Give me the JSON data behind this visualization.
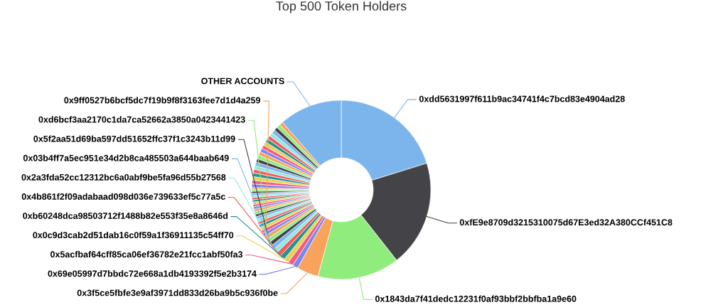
{
  "chart_data": {
    "type": "donut",
    "title": "Top 500 Token Holders",
    "categories": [
      "0xdd5631997f611b9ac34741f4c7bcd83e4904ad28",
      "0xfE9e8709d3215310075d67E3ed32A380CCf451C8",
      "0x1843da7f41dedc12231f0af93bbf2bbfba1a9e60",
      "0x3f5ce5fbfe3e9af3971dd833d26ba9b5c936f0be",
      "0x69e05997d7bbdc72e668a1db4193392f5e2b3174",
      "0x5acfbaf64cff85ca06ef36782e21fcc1abf50fa3",
      "0x0c9d3cab2d51dab16c0f59a1f36911135c54ff70",
      "0xb60248dca98503712f1488b82e553f35e8a8646d",
      "0x4b861f2f09adabaad098d036e739633ef5c77a5c",
      "0x2a3fda52cc12312bc6a0abf9be5fa96d55b27568",
      "0x03b4ff7a5ec951e34d2b8ca485503a644baab649",
      "0x5f2aa51d69ba597dd51652ffc37f1c3243b11d99",
      "0xd6bcf3aa2170c1da7ca52662a3850a0423441423",
      "0x9ff0527b6bcf5dc7f19b9f8f3163fee7d1d4a259",
      null,
      null,
      null,
      null,
      null,
      null,
      null,
      null,
      null,
      null,
      null,
      null,
      null,
      null,
      null,
      null,
      null,
      null,
      null,
      null,
      null,
      null,
      null,
      null,
      null,
      null,
      null,
      null,
      null,
      null,
      null,
      null,
      null,
      null,
      null,
      null,
      null,
      null,
      null,
      null,
      "OTHER ACCOUNTS"
    ],
    "values": [
      20.2,
      19.2,
      14.8,
      3.9,
      1.0,
      0.95,
      0.9,
      0.9,
      0.85,
      0.8,
      0.75,
      0.72,
      0.7,
      0.68,
      0.6,
      0.58,
      0.56,
      0.54,
      0.52,
      0.5,
      0.48,
      0.47,
      0.46,
      0.45,
      0.44,
      0.43,
      0.42,
      0.41,
      0.4,
      0.39,
      0.38,
      0.36,
      0.34,
      0.32,
      0.66,
      0.66,
      0.66,
      0.66,
      0.66,
      0.66,
      0.66,
      0.66,
      0.66,
      0.66,
      0.66,
      0.66,
      0.66,
      0.66,
      0.66,
      0.66,
      0.66,
      0.66,
      0.66,
      0.66,
      11.4
    ],
    "colors": [
      "#7cb5ec",
      "#434348",
      "#90ed7d",
      "#f7a35c",
      "#8085e9",
      "#f15c80",
      "#e4d354",
      "#2b908f",
      "#f45b5b",
      "#91e8e1",
      "#7cb5ec",
      "#434348",
      "#90ed7d",
      "#f7a35c",
      "#8085e9",
      "#f15c80",
      "#e4d354",
      "#2b908f",
      "#f45b5b",
      "#91e8e1",
      "#7cb5ec",
      "#434348",
      "#90ed7d",
      "#f7a35c",
      "#8085e9",
      "#f15c80",
      "#e4d354",
      "#2b908f",
      "#f45b5b",
      "#91e8e1",
      "#7cb5ec",
      "#434348",
      "#90ed7d",
      "#f7a35c",
      "#8085e9",
      "#f15c80",
      "#e4d354",
      "#2b908f",
      "#f45b5b",
      "#91e8e1",
      "#7cb5ec",
      "#434348",
      "#90ed7d",
      "#f7a35c",
      "#8085e9",
      "#f15c80",
      "#e4d354",
      "#2b908f",
      "#f45b5b",
      "#91e8e1",
      "#7cb5ec",
      "#434348",
      "#90ed7d",
      "#f7a35c",
      "#7cb5ec"
    ]
  }
}
